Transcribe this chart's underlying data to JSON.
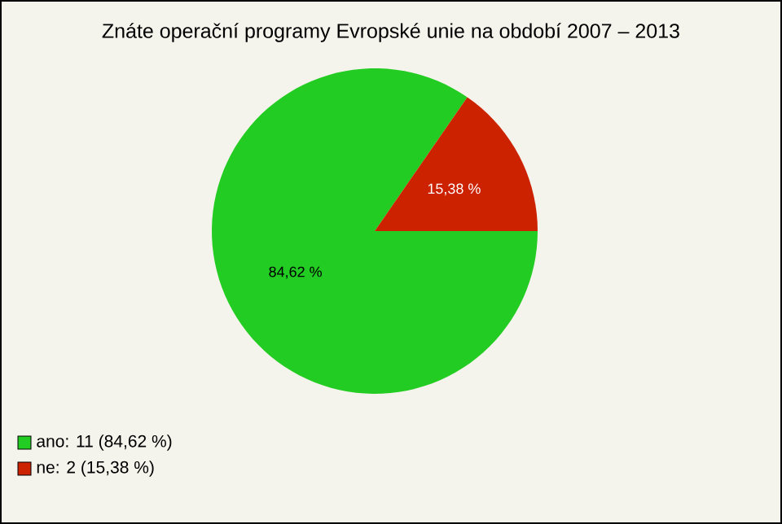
{
  "chart_data": {
    "type": "pie",
    "title": "Znáte operační programy Evropské unie na období 2007 – 2013",
    "categories": [
      "ano: 11 (84,62 %)",
      "ne: 2 (15,38 %)"
    ],
    "values": [
      84.62,
      15.38
    ],
    "colors": [
      "#22cc22",
      "#cc2200"
    ],
    "value_labels": [
      "84,62 %",
      "15,38 %"
    ],
    "legend": "bottom left"
  }
}
